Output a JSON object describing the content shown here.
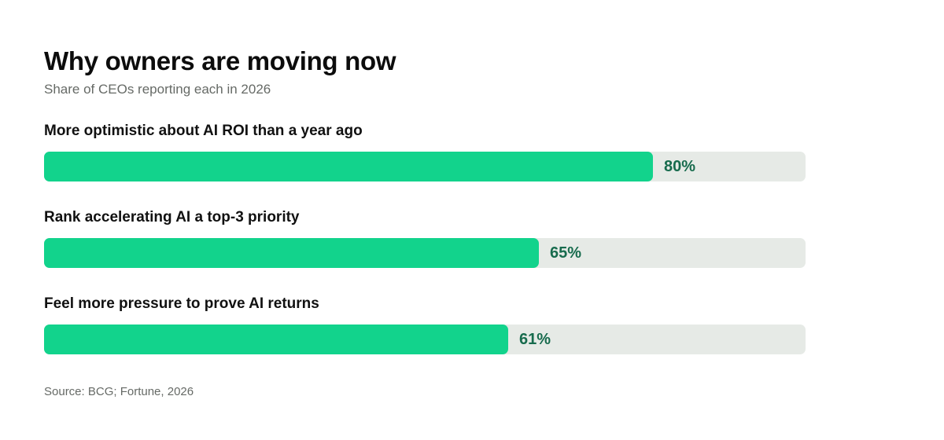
{
  "header": {
    "title": "Why owners are moving now",
    "subtitle": "Share of CEOs reporting each in 2026"
  },
  "footer": {
    "source": "Source: BCG; Fortune, 2026"
  },
  "colors": {
    "bar_fill": "#12d38c",
    "bar_track": "#e6eae6",
    "value_text": "#176b4d"
  },
  "chart_data": {
    "type": "bar",
    "orientation": "horizontal",
    "title": "Why owners are moving now",
    "subtitle": "Share of CEOs reporting each in 2026",
    "categories": [
      "More optimistic about AI ROI than a year ago",
      "Rank accelerating AI a top-3 priority",
      "Feel more pressure to prove AI returns"
    ],
    "values": [
      80,
      65,
      61
    ],
    "value_labels": [
      "80%",
      "65%",
      "61%"
    ],
    "unit": "%",
    "xlim": [
      0,
      100
    ],
    "grid": false,
    "legend": "none"
  }
}
